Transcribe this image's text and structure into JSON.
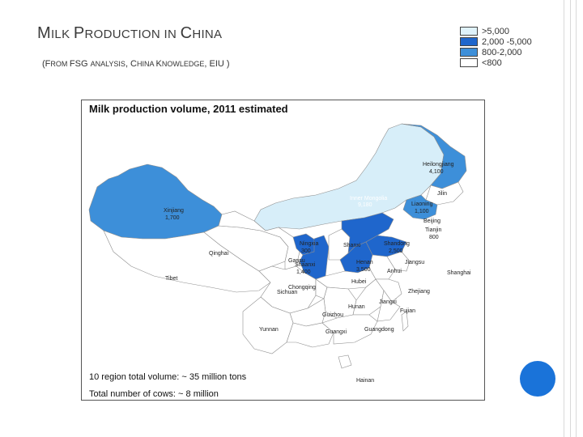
{
  "title": {
    "parts": [
      {
        "big": "M",
        "small": "ILK "
      },
      {
        "big": "P",
        "small": "RODUCTION IN "
      },
      {
        "big": "C",
        "small": "HINA"
      }
    ]
  },
  "subtitle": {
    "open": "(",
    "parts": [
      {
        "big": "F",
        "small": "ROM "
      },
      {
        "big": "FSG ",
        "small": "ANALYSIS"
      },
      {
        "big": ", C",
        "small": "HINA "
      },
      {
        "big": "K",
        "small": "NOWLEDGE"
      },
      {
        "big": ", EIU )",
        "small": ""
      }
    ]
  },
  "legend": {
    "items": [
      {
        "label": ">5,000",
        "color": "#dff2fa"
      },
      {
        "label": "2,000 -5,000",
        "color": "#1f66cc"
      },
      {
        "label": "800-2,000",
        "color": "#3d8fd9"
      },
      {
        "label": "<800",
        "color": "#ffffff"
      }
    ]
  },
  "map": {
    "title": "Milk production volume, 2011 estimated",
    "colors": {
      "inner_mongolia": "#d7eef9",
      "dark_blue": "#1f66cc",
      "mid_blue": "#3d8fd9",
      "white": "#ffffff",
      "border": "#8f8f8f"
    },
    "regions": [
      {
        "name": "Heilongjiang",
        "value": "4,100"
      },
      {
        "name": "Jilin",
        "value": ""
      },
      {
        "name": "Inner Mongolia",
        "value": "9,180"
      },
      {
        "name": "Liaoning",
        "value": "1,100"
      },
      {
        "name": "Xinjiang",
        "value": "1,700"
      },
      {
        "name": "Beijing",
        "value": ""
      },
      {
        "name": "Tianjin",
        "value": "800"
      },
      {
        "name": "Ningxia",
        "value": "300"
      },
      {
        "name": "Shanxi",
        "value": ""
      },
      {
        "name": "Shandong",
        "value": "2,500"
      },
      {
        "name": "Qinghai",
        "value": ""
      },
      {
        "name": "Gansu",
        "value": ""
      },
      {
        "name": "Shaanxi",
        "value": "1,400"
      },
      {
        "name": "Henan",
        "value": "3,500"
      },
      {
        "name": "Jiangsu",
        "value": ""
      },
      {
        "name": "Anhui",
        "value": ""
      },
      {
        "name": "Shanghai",
        "value": ""
      },
      {
        "name": "Tibet",
        "value": ""
      },
      {
        "name": "Hubei",
        "value": ""
      },
      {
        "name": "Chongqing",
        "value": ""
      },
      {
        "name": "Sichuan",
        "value": ""
      },
      {
        "name": "Zhejiang",
        "value": ""
      },
      {
        "name": "Jiangxi",
        "value": ""
      },
      {
        "name": "Hunan",
        "value": ""
      },
      {
        "name": "Fujian",
        "value": ""
      },
      {
        "name": "Guizhou",
        "value": ""
      },
      {
        "name": "Yunnan",
        "value": ""
      },
      {
        "name": "Guangxi",
        "value": ""
      },
      {
        "name": "Guangdong",
        "value": ""
      },
      {
        "name": "Hainan",
        "value": ""
      }
    ]
  },
  "notes": {
    "total_volume": "10 region total volume: ~ 35 million tons",
    "total_cows": "Total number of cows: ~ 8 million"
  }
}
